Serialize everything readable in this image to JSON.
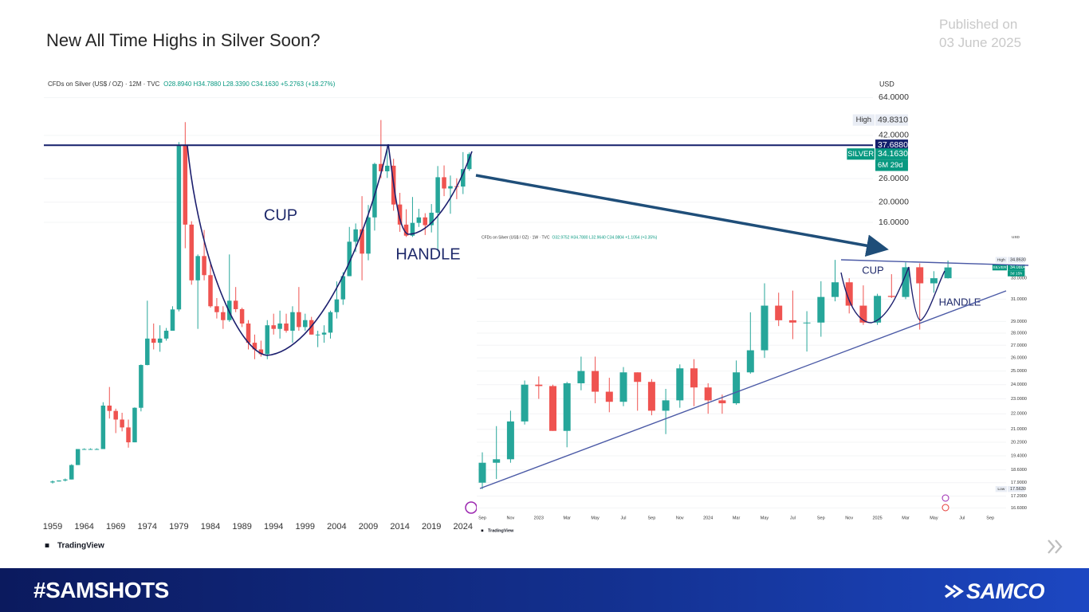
{
  "slide": {
    "title": "New All Time Highs in Silver Soon?",
    "published": "Published on",
    "date": "03 June 2025",
    "tag": "#SAMSHOTS",
    "brand": "SAMCO"
  },
  "chart_data": [
    {
      "type": "candlestick",
      "title": "CFDs on Silver (US$ / OZ) · 12M · TVC",
      "ohlc": "O28.8940 H34.7880 L28.3390 C34.1630 +5.2763 (+18.27%)",
      "currency": "USD",
      "source": "TradingView",
      "log": true,
      "grid": true,
      "up_color": "#26a69a",
      "down_color": "#ef5350",
      "categories": [
        "1959",
        null,
        null,
        null,
        null,
        "1964",
        null,
        null,
        null,
        null,
        "1969",
        null,
        null,
        null,
        null,
        "1974",
        null,
        null,
        null,
        null,
        "1979",
        null,
        null,
        null,
        null,
        "1984",
        null,
        null,
        null,
        null,
        "1989",
        null,
        null,
        null,
        null,
        "1994",
        null,
        null,
        null,
        null,
        "1999",
        null,
        null,
        null,
        null,
        "2004",
        null,
        null,
        null,
        null,
        "2009",
        null,
        null,
        null,
        null,
        "2014",
        null,
        null,
        null,
        null,
        "2019",
        null,
        null,
        null,
        null,
        "2024",
        null
      ],
      "open": [
        0.89,
        0.9,
        0.91,
        0.92,
        1.08,
        1.29,
        1.29,
        1.29,
        1.29,
        2.09,
        1.97,
        1.79,
        1.64,
        1.39,
        2.04,
        3.28,
        4.4,
        4.2,
        4.4,
        4.8,
        6.08,
        37.688,
        15.6,
        8.4,
        11.0,
        8.9,
        6.3,
        5.9,
        5.4,
        6.7,
        6.1,
        5.2,
        4.2,
        3.9,
        3.7,
        5.1,
        4.9,
        5.2,
        4.8,
        5.9,
        5.0,
        5.4,
        4.6,
        4.6,
        4.7,
        5.9,
        6.8,
        8.8,
        12.9,
        14.8,
        11.3,
        16.9,
        30.6,
        28.2,
        30.0,
        19.5,
        15.6,
        13.8,
        15.9,
        16.9,
        15.5,
        17.8,
        26.4,
        23.3,
        23.9,
        23.8,
        28.894
      ],
      "high": [
        0.91,
        0.91,
        0.93,
        1.09,
        1.29,
        1.3,
        1.3,
        1.3,
        2.17,
        2.57,
        2.02,
        1.93,
        1.79,
        2.05,
        3.3,
        6.7,
        5.2,
        5.1,
        4.95,
        6.3,
        39.0,
        48.7,
        16.2,
        11.2,
        14.7,
        10.1,
        6.9,
        6.3,
        11.2,
        7.8,
        6.2,
        5.4,
        4.6,
        4.3,
        5.4,
        5.8,
        6.0,
        5.8,
        6.3,
        7.8,
        5.8,
        5.6,
        4.8,
        5.1,
        6.0,
        8.3,
        9.2,
        15.2,
        15.8,
        21.4,
        19.4,
        31.0,
        49.831,
        37.5,
        32.4,
        22.2,
        18.5,
        21.2,
        18.6,
        17.7,
        19.6,
        29.9,
        30.1,
        26.9,
        26.1,
        34.9,
        34.788
      ],
      "low": [
        0.88,
        0.9,
        0.9,
        0.92,
        1.08,
        1.29,
        1.29,
        1.29,
        1.29,
        1.81,
        1.54,
        1.57,
        1.31,
        1.39,
        1.96,
        3.27,
        3.9,
        3.8,
        4.3,
        4.8,
        5.95,
        12.0,
        8.0,
        4.9,
        8.4,
        6.2,
        5.5,
        4.9,
        5.3,
        5.9,
        5.0,
        3.9,
        3.5,
        3.6,
        3.5,
        4.6,
        4.4,
        4.7,
        4.2,
        4.8,
        4.8,
        4.6,
        4.0,
        4.2,
        4.4,
        5.5,
        6.4,
        8.8,
        11.5,
        8.4,
        10.5,
        14.6,
        26.1,
        26.2,
        18.2,
        14.4,
        13.6,
        13.6,
        15.2,
        13.9,
        14.3,
        11.6,
        21.4,
        17.6,
        20.7,
        21.9,
        28.339
      ],
      "close": [
        0.9,
        0.91,
        0.92,
        1.08,
        1.29,
        1.29,
        1.29,
        1.29,
        2.09,
        1.97,
        1.79,
        1.64,
        1.39,
        2.04,
        3.28,
        4.4,
        4.2,
        4.4,
        4.8,
        6.08,
        37.688,
        15.6,
        8.4,
        11.0,
        8.9,
        6.3,
        5.9,
        5.4,
        6.7,
        6.1,
        5.2,
        4.2,
        3.9,
        3.7,
        5.1,
        4.9,
        5.2,
        4.8,
        5.9,
        5.0,
        5.4,
        4.6,
        4.6,
        4.7,
        5.9,
        6.8,
        8.8,
        12.9,
        14.8,
        11.3,
        16.9,
        30.6,
        28.2,
        30.0,
        19.5,
        15.6,
        13.8,
        15.9,
        16.9,
        15.5,
        17.8,
        26.4,
        23.3,
        23.9,
        23.8,
        28.894,
        34.163
      ],
      "ylim": [
        0.6,
        78
      ],
      "yticks": [
        {
          "value": 64,
          "label": "64.0000"
        },
        {
          "value": 42,
          "label": "42.0000"
        },
        {
          "value": 26,
          "label": "26.0000"
        },
        {
          "value": 20,
          "label": "20.0000"
        },
        {
          "value": 16,
          "label": "16.0000"
        }
      ],
      "markers": [
        {
          "name": "High",
          "value": 49.831,
          "label": "49.8310",
          "style": "plain"
        },
        {
          "value": 37.688,
          "label": "37.6880",
          "style": "navy",
          "line": true
        },
        {
          "name": "SILVER",
          "value": 34.163,
          "label": "34.1630",
          "sublabel": "6M 29d",
          "style": "green"
        }
      ],
      "annotations": [
        {
          "text": "CUP"
        },
        {
          "text": "HANDLE"
        }
      ]
    },
    {
      "type": "candlestick",
      "title": "CFDs on Silver (US$ / OZ) · 1W · TVC",
      "ohlc": "O32.9752 H34.7880 L32.9640 C34.0804 +1.1054 (+3.35%)",
      "currency": "USD",
      "source": "TradingView",
      "log": true,
      "grid": true,
      "up_color": "#26a69a",
      "down_color": "#ef5350",
      "categories": [
        "Sep",
        null,
        "Nov",
        null,
        "2023",
        null,
        "Mar",
        null,
        "May",
        null,
        "Jul",
        null,
        "Sep",
        null,
        "Nov",
        null,
        "2024",
        null,
        "Mar",
        null,
        "May",
        null,
        "Jul",
        null,
        "Sep",
        null,
        "Nov",
        null,
        "2025",
        null,
        "Mar",
        null,
        "May",
        null,
        "Jul",
        null,
        "Sep"
      ],
      "open": [
        17.9,
        19.0,
        19.2,
        21.5,
        24.0,
        23.9,
        20.9,
        24.1,
        25.0,
        23.5,
        22.8,
        24.9,
        24.2,
        22.2,
        22.9,
        25.2,
        23.8,
        22.9,
        22.7,
        24.9,
        26.6,
        30.4,
        29.1,
        28.9,
        28.9,
        31.2,
        32.6,
        30.4,
        28.9,
        31.3,
        31.2,
        34.1,
        32.5,
        33.0,
        null,
        null,
        null
      ],
      "high": [
        19.6,
        21.2,
        22.2,
        24.3,
        24.6,
        24.0,
        24.2,
        26.1,
        26.1,
        24.5,
        25.3,
        24.9,
        24.4,
        23.7,
        25.5,
        25.9,
        24.1,
        23.3,
        25.8,
        29.8,
        32.5,
        31.6,
        31.8,
        29.9,
        32.7,
        34.863,
        33.0,
        32.3,
        31.5,
        33.4,
        34.6,
        34.5,
        33.7,
        34.788,
        null,
        null,
        null
      ],
      "low": [
        17.563,
        18.1,
        19.0,
        21.3,
        23.0,
        20.9,
        19.9,
        23.6,
        22.7,
        22.1,
        22.5,
        22.2,
        21.9,
        20.7,
        22.4,
        22.5,
        22.0,
        22.0,
        22.6,
        24.8,
        26.0,
        28.6,
        27.5,
        26.5,
        27.7,
        30.8,
        29.7,
        28.7,
        28.7,
        31.1,
        31.0,
        28.3,
        31.6,
        32.964,
        null,
        null,
        null
      ],
      "close": [
        19.0,
        19.2,
        21.5,
        24.0,
        23.9,
        20.9,
        24.1,
        25.0,
        23.5,
        22.8,
        24.9,
        24.2,
        22.2,
        22.9,
        25.2,
        23.8,
        22.9,
        22.7,
        24.9,
        26.6,
        30.4,
        29.1,
        28.9,
        28.9,
        31.2,
        32.6,
        30.4,
        28.9,
        31.3,
        31.2,
        34.1,
        32.5,
        33.0,
        34.0804,
        null,
        null,
        null
      ],
      "ylim": [
        16.3,
        37.1
      ],
      "yticks": [
        {
          "value": 33,
          "label": "33.0000"
        },
        {
          "value": 31,
          "label": "31.0000"
        },
        {
          "value": 29,
          "label": "29.0000"
        },
        {
          "value": 28,
          "label": "28.0000"
        },
        {
          "value": 27,
          "label": "27.0000"
        },
        {
          "value": 26,
          "label": "26.0000"
        },
        {
          "value": 25,
          "label": "25.0000"
        },
        {
          "value": 24,
          "label": "24.0000"
        },
        {
          "value": 23,
          "label": "23.0000"
        },
        {
          "value": 22,
          "label": "22.0000"
        },
        {
          "value": 21,
          "label": "21.0000"
        },
        {
          "value": 20.2,
          "label": "20.2000"
        },
        {
          "value": 19.4,
          "label": "19.4000"
        },
        {
          "value": 18.6,
          "label": "18.6000"
        },
        {
          "value": 17.9,
          "label": "17.9000"
        },
        {
          "value": 17.2,
          "label": "17.2000"
        },
        {
          "value": 16.6,
          "label": "16.6000"
        }
      ],
      "markers": [
        {
          "name": "High",
          "value": 34.863,
          "label": "34.8630",
          "style": "plain"
        },
        {
          "name": "SILVER",
          "value": 34.0804,
          "label": "34.0804",
          "sublabel": "3d 15h",
          "style": "green"
        },
        {
          "name": "Low",
          "value": 17.563,
          "label": "17.5630",
          "style": "plain"
        }
      ],
      "annotations": [
        {
          "text": "CUP"
        },
        {
          "text": "HANDLE"
        }
      ]
    }
  ]
}
